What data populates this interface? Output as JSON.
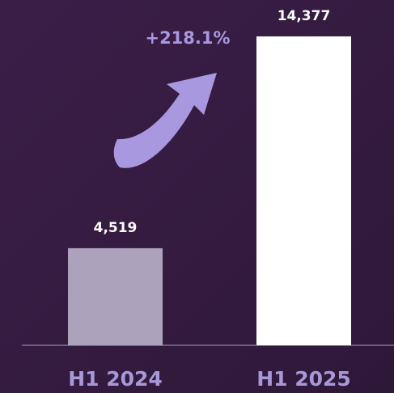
{
  "chart_data": {
    "type": "bar",
    "categories": [
      "H1 2024",
      "H1 2025"
    ],
    "values": [
      4519,
      14377
    ],
    "value_labels": [
      "4,519",
      "14,377"
    ],
    "colors": [
      "#aca2bc",
      "#ffffff"
    ],
    "annotation": "+218.1%"
  }
}
